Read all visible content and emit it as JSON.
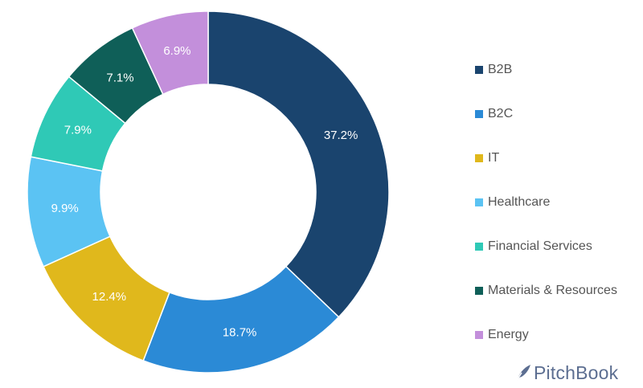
{
  "chart_data": {
    "type": "pie",
    "variant": "donut",
    "categories": [
      "B2B",
      "B2C",
      "IT",
      "Healthcare",
      "Financial Services",
      "Materials & Resources",
      "Energy"
    ],
    "values": [
      37.2,
      18.7,
      12.4,
      9.9,
      7.9,
      7.1,
      6.9
    ],
    "labels": [
      "37.2%",
      "18.7%",
      "12.4%",
      "9.9%",
      "7.9%",
      "7.1%",
      "6.9%"
    ],
    "colors": [
      "#1a446e",
      "#2b8ad6",
      "#e0b81c",
      "#5bc3f3",
      "#2fc9b6",
      "#0f5f58",
      "#c38fdb"
    ],
    "legend_position": "right",
    "start_angle": "top",
    "direction": "clockwise"
  },
  "brand": {
    "name": "PitchBook",
    "icon": "pitchbook-feather-icon"
  }
}
